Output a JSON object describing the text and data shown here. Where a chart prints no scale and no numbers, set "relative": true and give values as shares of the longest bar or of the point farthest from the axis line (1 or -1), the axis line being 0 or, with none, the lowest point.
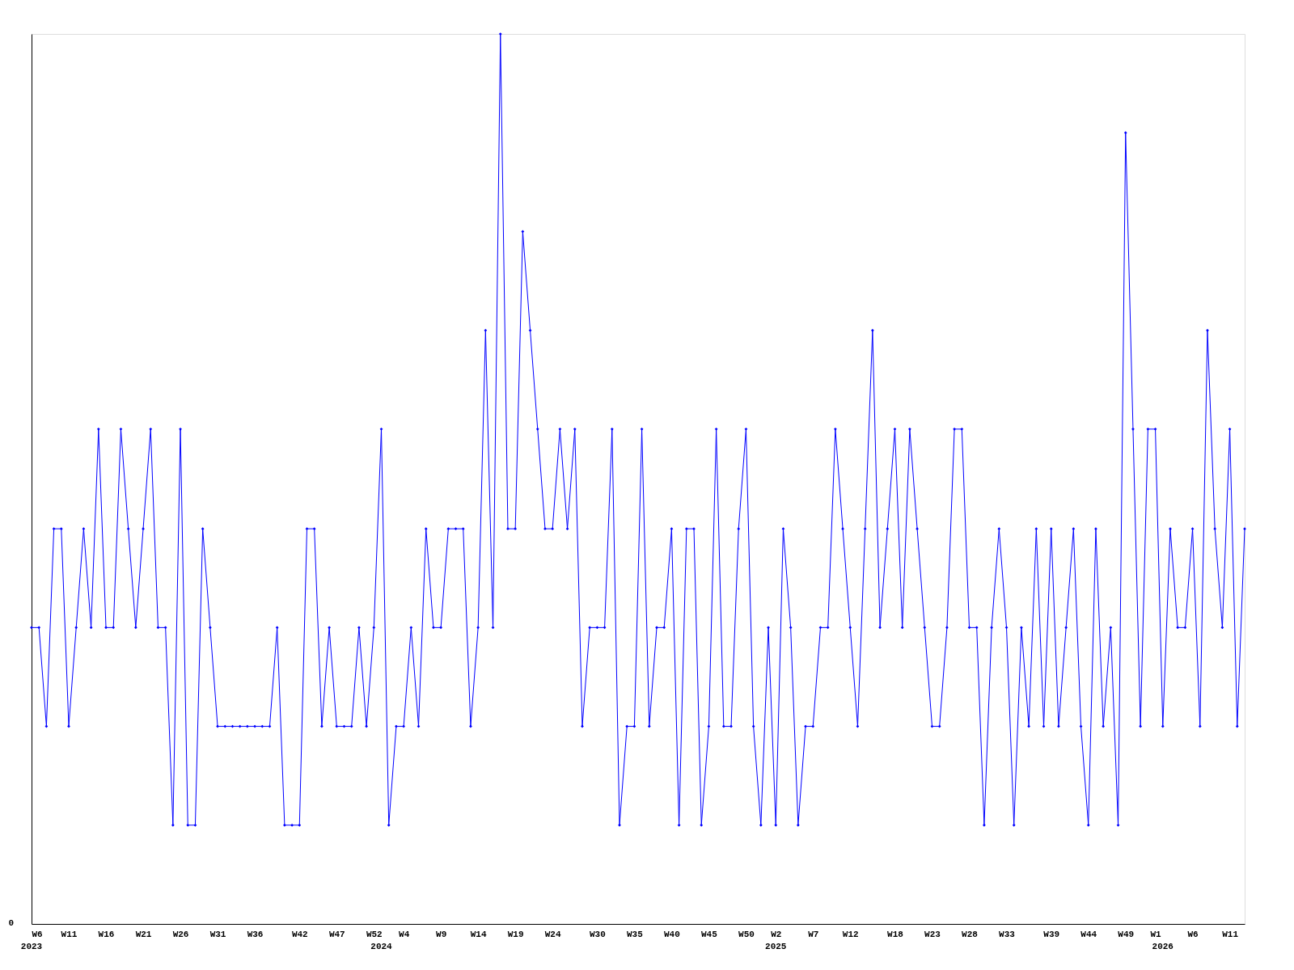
{
  "chart_data": {
    "type": "line",
    "relative": true,
    "marker": "diamond",
    "line_style": "solid",
    "grid": false,
    "xlim": [
      "2023-02-06",
      "2026-03-23"
    ],
    "xticks": [
      {
        "value": "2023-02-06",
        "label": "W6"
      },
      {
        "value": "2023-03-13",
        "label": "W11"
      },
      {
        "value": "2023-04-17",
        "label": "W16"
      },
      {
        "value": "2023-05-22",
        "label": "W21"
      },
      {
        "value": "2023-06-26",
        "label": "W26"
      },
      {
        "value": "2023-07-31",
        "label": "W31"
      },
      {
        "value": "2023-09-04",
        "label": "W36"
      },
      {
        "value": "2023-10-16",
        "label": "W42"
      },
      {
        "value": "2023-11-20",
        "label": "W47"
      },
      {
        "value": "2023-12-25",
        "label": "W52"
      },
      {
        "value": "2024-01-22",
        "label": "W4"
      },
      {
        "value": "2024-02-26",
        "label": "W9"
      },
      {
        "value": "2024-04-01",
        "label": "W14"
      },
      {
        "value": "2024-05-06",
        "label": "W19"
      },
      {
        "value": "2024-06-10",
        "label": "W24"
      },
      {
        "value": "2024-07-22",
        "label": "W30"
      },
      {
        "value": "2024-08-26",
        "label": "W35"
      },
      {
        "value": "2024-09-30",
        "label": "W40"
      },
      {
        "value": "2024-11-04",
        "label": "W45"
      },
      {
        "value": "2024-12-09",
        "label": "W50"
      },
      {
        "value": "2025-01-06",
        "label": "W2"
      },
      {
        "value": "2025-02-10",
        "label": "W7"
      },
      {
        "value": "2025-03-17",
        "label": "W12"
      },
      {
        "value": "2025-04-28",
        "label": "W18"
      },
      {
        "value": "2025-06-02",
        "label": "W23"
      },
      {
        "value": "2025-07-07",
        "label": "W28"
      },
      {
        "value": "2025-08-11",
        "label": "W33"
      },
      {
        "value": "2025-09-22",
        "label": "W39"
      },
      {
        "value": "2025-10-27",
        "label": "W44"
      },
      {
        "value": "2025-12-01",
        "label": "W49"
      },
      {
        "value": "2025-12-29",
        "label": "W1"
      },
      {
        "value": "2026-02-02",
        "label": "W6"
      },
      {
        "value": "2026-03-09",
        "label": "W11"
      }
    ],
    "annotations": [
      "0",
      "2023",
      "2024",
      "2025",
      "2026"
    ],
    "x": [
      "2023-02-06",
      "2023-02-13",
      "2023-02-20",
      "2023-02-27",
      "2023-03-06",
      "2023-03-13",
      "2023-03-20",
      "2023-03-27",
      "2023-04-03",
      "2023-04-10",
      "2023-04-17",
      "2023-04-24",
      "2023-05-01",
      "2023-05-08",
      "2023-05-15",
      "2023-05-22",
      "2023-05-29",
      "2023-06-05",
      "2023-06-12",
      "2023-06-19",
      "2023-06-26",
      "2023-07-03",
      "2023-07-10",
      "2023-07-17",
      "2023-07-24",
      "2023-07-31",
      "2023-08-07",
      "2023-08-14",
      "2023-08-21",
      "2023-08-28",
      "2023-09-04",
      "2023-09-11",
      "2023-09-18",
      "2023-09-25",
      "2023-10-02",
      "2023-10-09",
      "2023-10-16",
      "2023-10-23",
      "2023-10-30",
      "2023-11-06",
      "2023-11-13",
      "2023-11-20",
      "2023-11-27",
      "2023-12-04",
      "2023-12-11",
      "2023-12-18",
      "2023-12-25",
      "2024-01-01",
      "2024-01-08",
      "2024-01-15",
      "2024-01-22",
      "2024-01-29",
      "2024-02-05",
      "2024-02-12",
      "2024-02-19",
      "2024-02-26",
      "2024-03-04",
      "2024-03-11",
      "2024-03-18",
      "2024-03-25",
      "2024-04-01",
      "2024-04-08",
      "2024-04-15",
      "2024-04-22",
      "2024-04-29",
      "2024-05-06",
      "2024-05-13",
      "2024-05-20",
      "2024-05-27",
      "2024-06-03",
      "2024-06-10",
      "2024-06-17",
      "2024-06-24",
      "2024-07-01",
      "2024-07-08",
      "2024-07-15",
      "2024-07-22",
      "2024-07-29",
      "2024-08-05",
      "2024-08-12",
      "2024-08-19",
      "2024-08-26",
      "2024-09-02",
      "2024-09-09",
      "2024-09-16",
      "2024-09-23",
      "2024-09-30",
      "2024-10-07",
      "2024-10-14",
      "2024-10-21",
      "2024-10-28",
      "2024-11-04",
      "2024-11-11",
      "2024-11-18",
      "2024-11-25",
      "2024-12-02",
      "2024-12-09",
      "2024-12-16",
      "2024-12-23",
      "2024-12-30",
      "2025-01-06",
      "2025-01-13",
      "2025-01-20",
      "2025-01-27",
      "2025-02-03",
      "2025-02-10",
      "2025-02-17",
      "2025-02-24",
      "2025-03-03",
      "2025-03-10",
      "2025-03-17",
      "2025-03-24",
      "2025-03-31",
      "2025-04-07",
      "2025-04-14",
      "2025-04-21",
      "2025-04-28",
      "2025-05-05",
      "2025-05-12",
      "2025-05-19",
      "2025-05-26",
      "2025-06-02",
      "2025-06-09",
      "2025-06-16",
      "2025-06-23",
      "2025-06-30",
      "2025-07-07",
      "2025-07-14",
      "2025-07-21",
      "2025-07-28",
      "2025-08-04",
      "2025-08-11",
      "2025-08-18",
      "2025-08-25",
      "2025-09-01",
      "2025-09-08",
      "2025-09-15",
      "2025-09-22",
      "2025-09-29",
      "2025-10-06",
      "2025-10-13",
      "2025-10-20",
      "2025-10-27",
      "2025-11-03",
      "2025-11-10",
      "2025-11-17",
      "2025-11-24",
      "2025-12-01",
      "2025-12-08",
      "2025-12-15",
      "2025-12-22",
      "2025-12-29",
      "2026-01-05",
      "2026-01-12",
      "2026-01-19",
      "2026-01-26",
      "2026-02-02",
      "2026-02-09",
      "2026-02-16",
      "2026-02-23",
      "2026-03-02",
      "2026-03-09",
      "2026-03-16",
      "2026-03-23"
    ],
    "series": [
      {
        "color": "#0000ff",
        "values": [
          0.333,
          0.333,
          0.222,
          0.444,
          0.444,
          0.222,
          0.333,
          0.444,
          0.333,
          0.556,
          0.333,
          0.333,
          0.556,
          0.444,
          0.333,
          0.444,
          0.556,
          0.333,
          0.333,
          0.111,
          0.556,
          0.111,
          0.111,
          0.444,
          0.333,
          0.222,
          0.222,
          0.222,
          0.222,
          0.222,
          0.222,
          0.222,
          0.222,
          0.333,
          0.111,
          0.111,
          0.111,
          0.444,
          0.444,
          0.222,
          0.333,
          0.222,
          0.222,
          0.222,
          0.333,
          0.222,
          0.333,
          0.556,
          0.111,
          0.222,
          0.222,
          0.333,
          0.222,
          0.444,
          0.333,
          0.333,
          0.444,
          0.444,
          0.444,
          0.222,
          0.333,
          0.667,
          0.333,
          1,
          0.444,
          0.444,
          0.778,
          0.667,
          0.556,
          0.444,
          0.444,
          0.556,
          0.444,
          0.556,
          0.222,
          0.333,
          0.333,
          0.333,
          0.556,
          0.111,
          0.222,
          0.222,
          0.556,
          0.222,
          0.333,
          0.333,
          0.444,
          0.111,
          0.444,
          0.444,
          0.111,
          0.222,
          0.556,
          0.222,
          0.222,
          0.444,
          0.556,
          0.222,
          0.111,
          0.333,
          0.111,
          0.444,
          0.333,
          0.111,
          0.222,
          0.222,
          0.333,
          0.333,
          0.556,
          0.444,
          0.333,
          0.222,
          0.444,
          0.667,
          0.333,
          0.444,
          0.556,
          0.333,
          0.556,
          0.444,
          0.333,
          0.222,
          0.222,
          0.333,
          0.556,
          0.556,
          0.333,
          0.333,
          0.111,
          0.333,
          0.444,
          0.333,
          0.111,
          0.333,
          0.222,
          0.444,
          0.222,
          0.444,
          0.222,
          0.333,
          0.444,
          0.222,
          0.111,
          0.444,
          0.222,
          0.333,
          0.111,
          0.889,
          0.556,
          0.222,
          0.556,
          0.556,
          0.222,
          0.444,
          0.333,
          0.333,
          0.444,
          0.222,
          0.667,
          0.444,
          0.333,
          0.556,
          0.222,
          0.444
        ]
      }
    ]
  }
}
